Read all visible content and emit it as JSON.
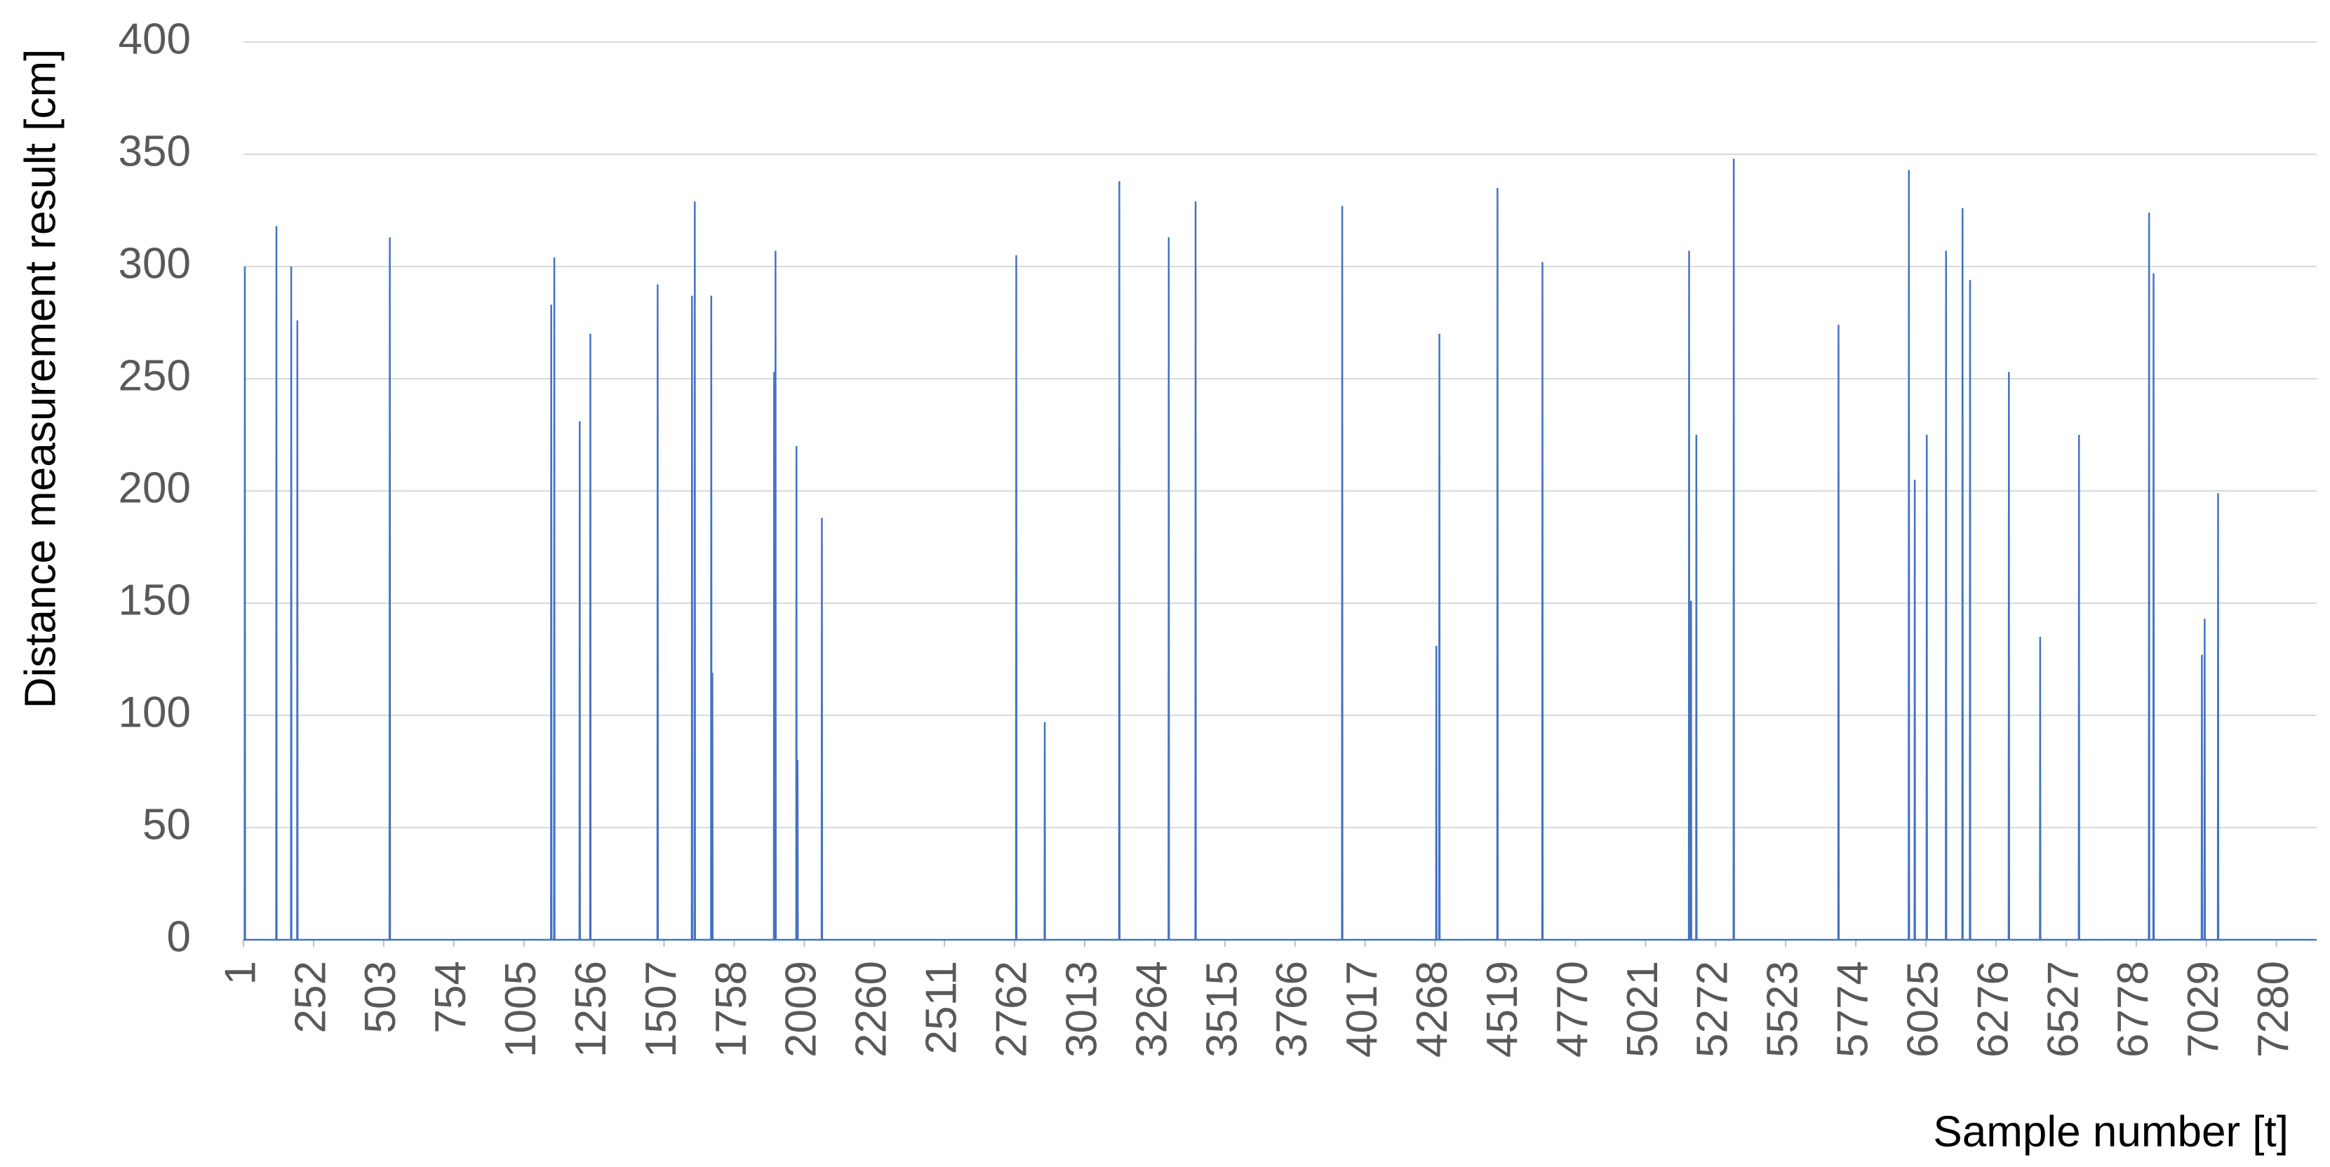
{
  "chart_data": {
    "type": "line",
    "x_label": "Sample number [t]",
    "y_label": "Distance measurement result [cm]",
    "color": "#4472c4",
    "grid": true,
    "xlim": [
      1,
      7424
    ],
    "ylim": [
      0,
      400
    ],
    "yticks": [
      0,
      50,
      100,
      150,
      200,
      250,
      300,
      350,
      400
    ],
    "xticks": [
      1,
      252,
      503,
      754,
      1005,
      1256,
      1507,
      1758,
      2009,
      2260,
      2511,
      2762,
      3013,
      3264,
      3515,
      3766,
      4017,
      4268,
      4519,
      4770,
      5021,
      5272,
      5523,
      5774,
      6025,
      6276,
      6527,
      6778,
      7029,
      7280
    ],
    "x": [
      1,
      5,
      6,
      7,
      118,
      119,
      120,
      171,
      172,
      173,
      193,
      194,
      195,
      524,
      525,
      526,
      1102,
      1103,
      1104,
      1113,
      1114,
      1115,
      1204,
      1205,
      1206,
      1242,
      1243,
      1244,
      1483,
      1484,
      1485,
      1606,
      1607,
      1608,
      1616,
      1617,
      1618,
      1675,
      1676,
      1677,
      1679,
      1680,
      1681,
      1900,
      1901,
      1902,
      1905,
      1906,
      1907,
      1980,
      1981,
      1982,
      1984,
      1985,
      1986,
      2071,
      2072,
      2073,
      2767,
      2768,
      2769,
      2869,
      2870,
      2871,
      3136,
      3137,
      3138,
      3313,
      3314,
      3315,
      3409,
      3410,
      3411,
      3934,
      3935,
      3936,
      4271,
      4272,
      4273,
      4282,
      4283,
      4284,
      4490,
      4491,
      4492,
      4651,
      4652,
      4653,
      5176,
      5177,
      5178,
      5183,
      5184,
      5185,
      5202,
      5203,
      5204,
      5336,
      5337,
      5338,
      5711,
      5712,
      5713,
      5963,
      5964,
      5965,
      5984,
      5985,
      5986,
      6027,
      6028,
      6029,
      6096,
      6097,
      6098,
      6155,
      6156,
      6157,
      6182,
      6183,
      6184,
      6321,
      6322,
      6323,
      6433,
      6434,
      6435,
      6572,
      6573,
      6574,
      6823,
      6824,
      6825,
      6839,
      6840,
      6841,
      7012,
      7013,
      7014,
      7022,
      7023,
      7024,
      7070,
      7071,
      7072,
      7424
    ],
    "values": [
      0,
      0,
      300,
      0,
      0,
      318,
      0,
      0,
      300,
      0,
      0,
      276,
      0,
      0,
      313,
      0,
      0,
      283,
      0,
      0,
      304,
      0,
      0,
      231,
      0,
      0,
      270,
      0,
      0,
      292,
      0,
      0,
      287,
      0,
      0,
      329,
      0,
      0,
      287,
      0,
      0,
      119,
      0,
      0,
      253,
      0,
      0,
      307,
      0,
      0,
      220,
      0,
      0,
      80,
      0,
      0,
      188,
      0,
      0,
      305,
      0,
      0,
      97,
      0,
      0,
      338,
      0,
      0,
      313,
      0,
      0,
      329,
      0,
      0,
      327,
      0,
      0,
      131,
      0,
      0,
      270,
      0,
      0,
      335,
      0,
      0,
      302,
      0,
      0,
      307,
      0,
      0,
      151,
      0,
      0,
      225,
      0,
      0,
      348,
      0,
      0,
      274,
      0,
      0,
      343,
      0,
      0,
      205,
      0,
      0,
      225,
      0,
      0,
      307,
      0,
      0,
      326,
      0,
      0,
      294,
      0,
      0,
      253,
      0,
      0,
      135,
      0,
      0,
      225,
      0,
      0,
      324,
      0,
      0,
      297,
      0,
      0,
      127,
      0,
      0,
      143,
      0,
      0,
      199,
      0,
      0
    ]
  }
}
